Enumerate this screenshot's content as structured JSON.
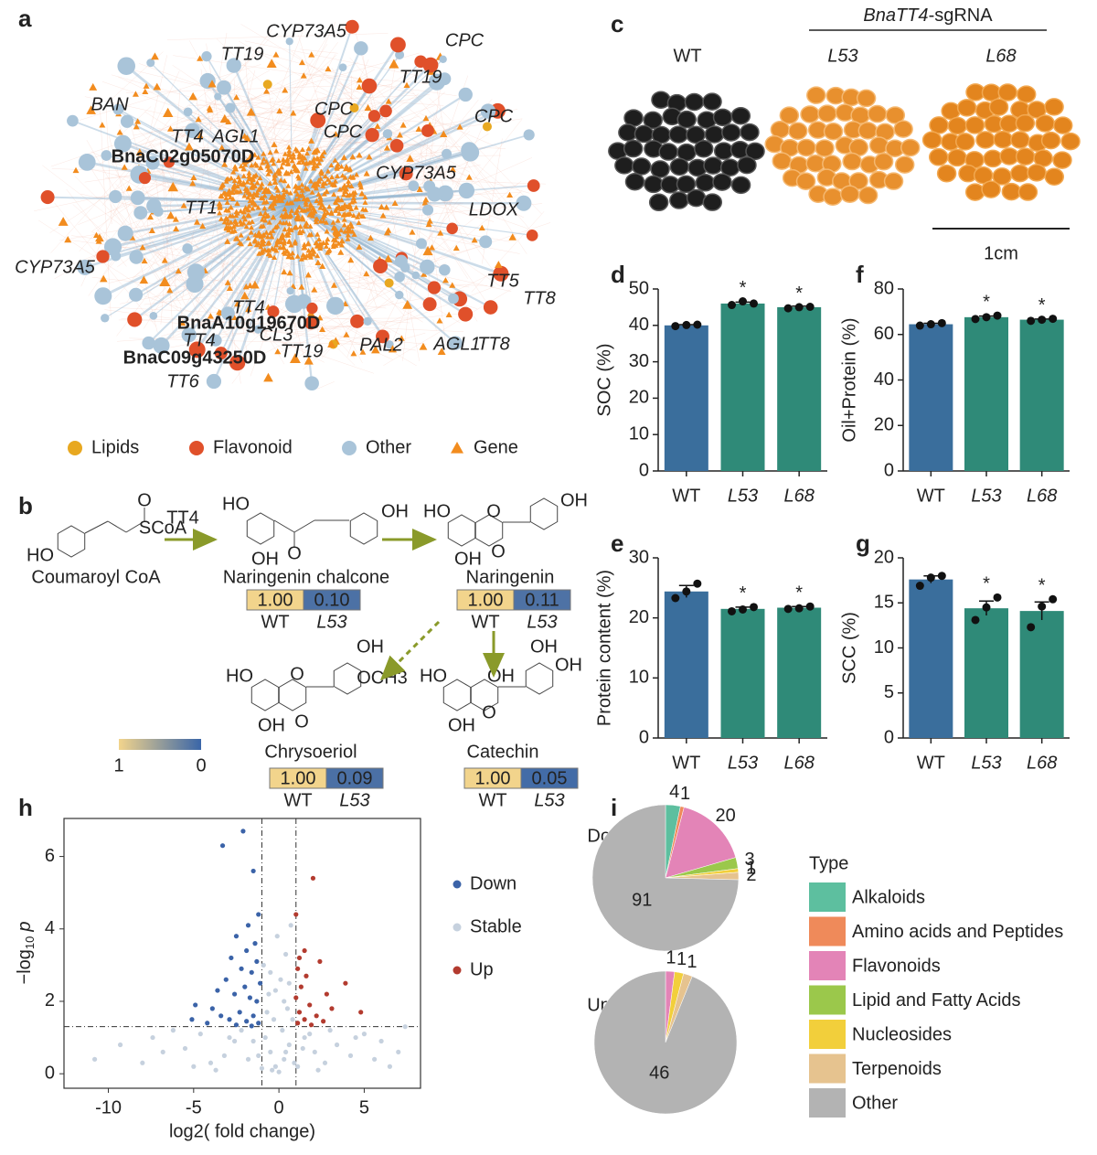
{
  "network": {
    "panel": "a",
    "labels": [
      "BAN",
      "TT19",
      "CYP73A5",
      "CPC",
      "TT19",
      "CPC",
      "CPC",
      "CPC",
      "TT4",
      "AGL1",
      "BnaC02g05070D",
      "CYP73A5",
      "TT1",
      "LDOX",
      "CYP73A5",
      "TT5",
      "TT8",
      "TT4",
      "BnaA10g19670D",
      "CL3",
      "TT4",
      "BnaC09g43250D",
      "TT19",
      "PAL2",
      "AGL1",
      "TT8",
      "TT6"
    ],
    "legend": [
      "Lipids",
      "Flavonoid",
      "Other",
      "Gene"
    ]
  },
  "pathway": {
    "panel": "b",
    "enzyme": "TT4",
    "heatmap_columns": [
      "WT",
      "L53"
    ],
    "colorbar_ticks": [
      1,
      0
    ],
    "compounds": [
      {
        "name": "Coumaroyl CoA",
        "atoms": [
          "HO",
          "O",
          "SCoA"
        ]
      },
      {
        "name": "Naringenin chalcone",
        "atoms": [
          "HO",
          "OH",
          "O",
          "OH"
        ],
        "values": [
          1.0,
          0.1
        ],
        "value_labels": [
          "1.00",
          "0.10"
        ]
      },
      {
        "name": "Naringenin",
        "atoms": [
          "HO",
          "O",
          "OH",
          "OH",
          "O"
        ],
        "values": [
          1.0,
          0.11
        ],
        "value_labels": [
          "1.00",
          "0.11"
        ]
      },
      {
        "name": "Chrysoeriol",
        "atoms": [
          "HO",
          "O",
          "OH",
          "OH",
          "OCH3",
          "O"
        ],
        "values": [
          1.0,
          0.09
        ],
        "value_labels": [
          "1.00",
          "0.09"
        ]
      },
      {
        "name": "Catechin",
        "atoms": [
          "HO",
          "O",
          "OH",
          "OH",
          "OH",
          "OH"
        ],
        "values": [
          1.0,
          0.05
        ],
        "value_labels": [
          "1.00",
          "0.05"
        ]
      }
    ]
  },
  "photos": {
    "panel": "c",
    "header_parts": [
      "BnaTT4",
      "-sgRNA"
    ],
    "lines": [
      "WT",
      "L53",
      "L68"
    ],
    "scale_bar": "1cm"
  },
  "chart_data": [
    {
      "type": "bar",
      "panel": "d",
      "y_label": "SOC (%)",
      "categories": [
        "WT",
        "L53",
        "L68"
      ],
      "values": [
        40,
        46,
        45
      ],
      "errors": [
        0.2,
        0.4,
        0.3
      ],
      "points": [
        [
          39.8,
          40.1,
          40.2
        ],
        [
          45.6,
          46.6,
          46.0
        ],
        [
          44.7,
          45.0,
          45.1
        ]
      ],
      "significance": [
        null,
        "*",
        "*"
      ],
      "colors": [
        "#3a6e9c",
        "#2f8a78",
        "#2f8a78"
      ],
      "ylim": [
        0,
        50
      ],
      "yticks": [
        0,
        10,
        20,
        30,
        40,
        50
      ]
    },
    {
      "type": "bar",
      "panel": "e",
      "y_label": "Protein content (%)",
      "categories": [
        "WT",
        "L53",
        "L68"
      ],
      "values": [
        24.4,
        21.5,
        21.7
      ],
      "errors": [
        1.0,
        0.3,
        0.2
      ],
      "points": [
        [
          23.3,
          24.4,
          25.7
        ],
        [
          21.1,
          21.4,
          21.8
        ],
        [
          21.5,
          21.6,
          21.9
        ]
      ],
      "significance": [
        null,
        "*",
        "*"
      ],
      "colors": [
        "#3a6e9c",
        "#2f8a78",
        "#2f8a78"
      ],
      "ylim": [
        0,
        30
      ],
      "yticks": [
        0,
        10,
        20,
        30
      ]
    },
    {
      "type": "bar",
      "panel": "f",
      "y_label": "Oil+Protein (%)",
      "categories": [
        "WT",
        "L53",
        "L68"
      ],
      "values": [
        64.5,
        67.6,
        66.5
      ],
      "errors": [
        0.4,
        0.5,
        0.3
      ],
      "points": [
        [
          63.9,
          64.5,
          65.0
        ],
        [
          66.8,
          67.6,
          68.3
        ],
        [
          66.0,
          66.5,
          66.9
        ]
      ],
      "significance": [
        null,
        "*",
        "*"
      ],
      "colors": [
        "#3a6e9c",
        "#2f8a78",
        "#2f8a78"
      ],
      "ylim": [
        0,
        80
      ],
      "yticks": [
        0,
        20,
        40,
        60,
        80
      ]
    },
    {
      "type": "bar",
      "panel": "g",
      "y_label": "SCC (%)",
      "categories": [
        "WT",
        "L53",
        "L68"
      ],
      "values": [
        17.6,
        14.4,
        14.1
      ],
      "errors": [
        0.4,
        0.8,
        1.0
      ],
      "points": [
        [
          16.9,
          17.8,
          18.0
        ],
        [
          13.1,
          14.5,
          15.6
        ],
        [
          12.3,
          14.6,
          15.4
        ]
      ],
      "significance": [
        null,
        "*",
        "*"
      ],
      "colors": [
        "#3a6e9c",
        "#2f8a78",
        "#2f8a78"
      ],
      "ylim": [
        0,
        20
      ],
      "yticks": [
        0,
        5,
        10,
        15,
        20
      ]
    },
    {
      "type": "scatter",
      "panel": "h",
      "x_label": "log2( fold change)",
      "y_label_parts": [
        "−log",
        "10",
        "p"
      ],
      "xlim": [
        -12.6,
        8.3
      ],
      "xticks": [
        -10,
        -5,
        0,
        5
      ],
      "ylim": [
        -0.4,
        7.05
      ],
      "yticks": [
        0,
        2,
        4,
        6
      ],
      "thresholds": {
        "x": [
          -1,
          1
        ],
        "y": 1.3
      },
      "series": [
        {
          "name": "Down",
          "color": "#3b63a8",
          "x": [
            -3.3,
            -2.1,
            -1.5,
            -1.2,
            -1.8,
            -2.5,
            -1.4,
            -1.9,
            -2.8,
            -1.3,
            -2.2,
            -1.6,
            -3.1,
            -1.1,
            -2.0,
            -3.6,
            -2.6,
            -1.7,
            -1.3,
            -4.9,
            -3.9,
            -2.3,
            -1.5,
            -3.4,
            -5.1,
            -2.9,
            -1.9,
            -1.2,
            -4.2,
            -2.5,
            -1.6
          ],
          "y": [
            6.3,
            6.7,
            5.6,
            4.4,
            4.1,
            3.8,
            3.6,
            3.4,
            3.2,
            3.1,
            2.9,
            2.8,
            2.6,
            2.5,
            2.4,
            2.3,
            2.2,
            2.1,
            2.0,
            1.9,
            1.8,
            1.7,
            1.6,
            1.6,
            1.5,
            1.5,
            1.45,
            1.4,
            1.4,
            1.35,
            1.32
          ]
        },
        {
          "name": "Stable",
          "color": "#c6d1de",
          "x": [
            -0.2,
            0.3,
            -0.5,
            0.6,
            -0.8,
            0.2,
            -0.3,
            0.5,
            -0.6,
            0.1,
            -0.9,
            0.4,
            -0.1,
            0.7,
            -0.4,
            0.9,
            -1.2,
            1.4,
            -1.8,
            2.1,
            -2.6,
            2.7,
            -3.2,
            3.4,
            -4.0,
            4.2,
            -5.5,
            5.6,
            -6.8,
            6.5,
            -9.3,
            7.4,
            -10.8,
            7.0,
            -8.0,
            -7.4,
            5.0,
            -4.6,
            3.0,
            -2.2,
            1.5,
            -1.5,
            0.0,
            0.8,
            -0.7,
            0.3,
            -0.2,
            0.6,
            -0.5,
            1.8,
            -2.9,
            4.5,
            -6.2,
            -5.0,
            6.0,
            2.3,
            -3.7,
            -1.0,
            1.1,
            0.4
          ],
          "y": [
            0.2,
            0.4,
            0.6,
            0.8,
            1.0,
            1.2,
            1.5,
            1.8,
            2.2,
            2.6,
            3.0,
            3.3,
            3.8,
            4.1,
            0.1,
            0.3,
            0.5,
            0.7,
            0.4,
            0.6,
            0.9,
            0.3,
            0.5,
            0.8,
            0.3,
            0.5,
            0.7,
            0.4,
            0.6,
            0.2,
            0.8,
            1.3,
            0.4,
            0.6,
            0.3,
            1.0,
            1.1,
            1.1,
            1.2,
            1.2,
            1.0,
            0.9,
            0.05,
            1.5,
            1.7,
            2.0,
            2.3,
            2.5,
            2.8,
            1.1,
            1.0,
            1.0,
            1.2,
            0.2,
            0.9,
            0.1,
            0.1,
            0.15,
            0.2,
            0.6
          ]
        },
        {
          "name": "Up",
          "color": "#b33b2f",
          "x": [
            2.0,
            1.0,
            1.5,
            1.2,
            2.4,
            1.1,
            3.9,
            1.6,
            1.3,
            2.8,
            1.0,
            1.8,
            4.8,
            1.2,
            2.2,
            1.5,
            1.1,
            2.6,
            1.9,
            3.1
          ],
          "y": [
            5.4,
            4.4,
            3.4,
            3.2,
            3.1,
            2.9,
            2.5,
            2.7,
            2.4,
            2.2,
            2.1,
            1.9,
            1.7,
            1.7,
            1.6,
            1.5,
            1.4,
            1.45,
            1.35,
            1.8
          ]
        }
      ]
    },
    {
      "type": "pie",
      "panel": "i",
      "legend_title": "Type",
      "categories": [
        "Alkaloids",
        "Amino acids and Peptides",
        "Flavonoids",
        "Lipid and Fatty Acids",
        "Nucleosides",
        "Terpenoids",
        "Other"
      ],
      "colors": [
        "#5dbf9f",
        "#ef8a5a",
        "#e384b7",
        "#9bc84b",
        "#f2cf3b",
        "#e6c38f",
        "#b3b3b3"
      ],
      "series": [
        {
          "name": "Down",
          "values": [
            4,
            1,
            20,
            3,
            1,
            2,
            91
          ]
        },
        {
          "name": "Up",
          "values": [
            null,
            null,
            1,
            null,
            1,
            1,
            46
          ]
        }
      ]
    }
  ]
}
